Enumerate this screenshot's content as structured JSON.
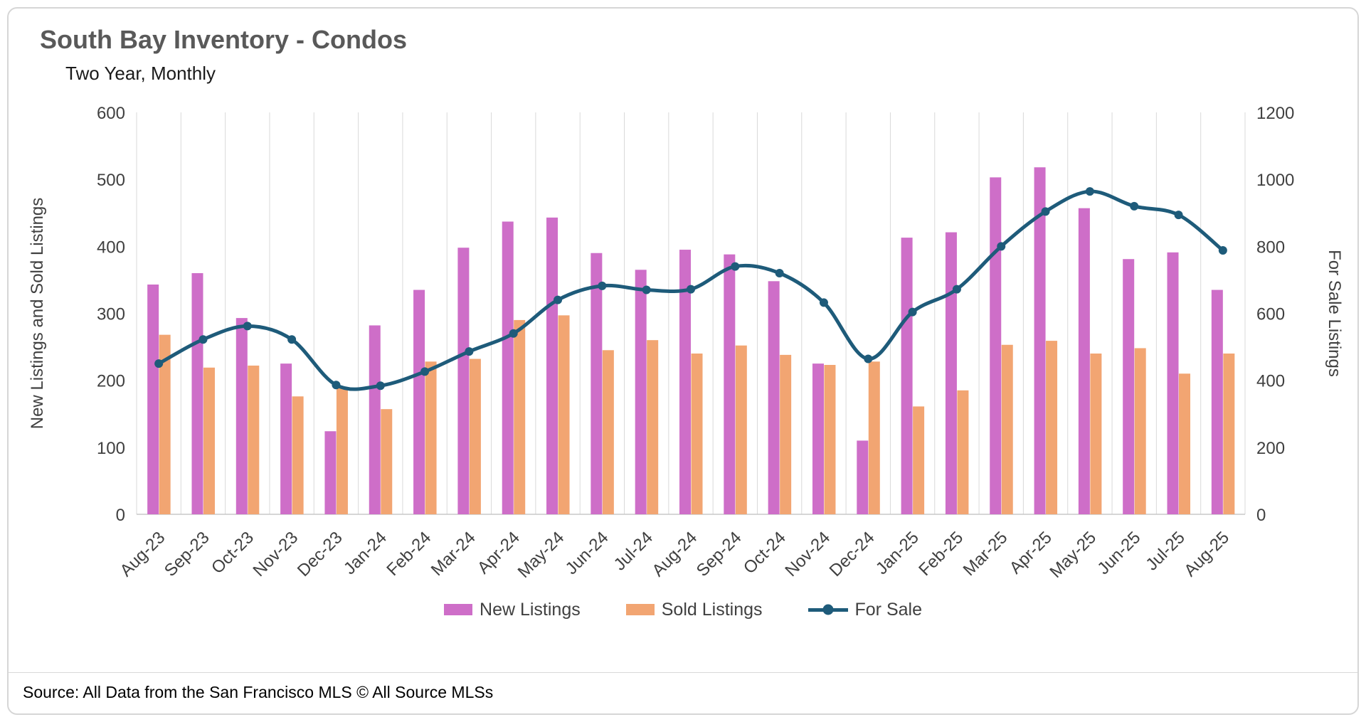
{
  "header": {
    "title": "South Bay Inventory - Condos",
    "subtitle": "Two Year, Monthly"
  },
  "footer": {
    "source": "Source: All Data from the San Francisco MLS © All Source MLSs"
  },
  "colors": {
    "new_listings": "#ce6ec8",
    "sold_listings": "#f2a572",
    "for_sale": "#1e5b7a",
    "gridline": "#d9d9d9",
    "axis_text": "#404040",
    "title_text": "#595959"
  },
  "chart_data": {
    "type": "bar+line",
    "title": "South Bay Inventory - Condos",
    "subtitle": "Two Year, Monthly",
    "grid": "vertical-only",
    "legend_position": "bottom",
    "categories": [
      "Aug-23",
      "Sep-23",
      "Oct-23",
      "Nov-23",
      "Dec-23",
      "Jan-24",
      "Feb-24",
      "Mar-24",
      "Apr-24",
      "May-24",
      "Jun-24",
      "Jul-24",
      "Aug-24",
      "Sep-24",
      "Oct-24",
      "Nov-24",
      "Dec-24",
      "Jan-25",
      "Feb-25",
      "Mar-25",
      "Apr-25",
      "May-25",
      "Jun-25",
      "Jul-25",
      "Aug-25"
    ],
    "series": [
      {
        "name": "New Listings",
        "type": "bar",
        "axis": "left",
        "color": "#ce6ec8",
        "values": [
          343,
          360,
          293,
          225,
          124,
          282,
          335,
          398,
          437,
          443,
          390,
          365,
          395,
          388,
          348,
          225,
          110,
          413,
          421,
          503,
          518,
          457,
          381,
          391,
          335
        ]
      },
      {
        "name": "Sold Listings",
        "type": "bar",
        "axis": "left",
        "color": "#f2a572",
        "values": [
          268,
          219,
          222,
          176,
          190,
          157,
          228,
          232,
          290,
          297,
          245,
          260,
          240,
          252,
          238,
          223,
          228,
          161,
          185,
          253,
          259,
          240,
          248,
          210,
          240
        ]
      },
      {
        "name": "For Sale",
        "type": "line",
        "axis": "right",
        "color": "#1e5b7a",
        "values": [
          450,
          522,
          562,
          522,
          386,
          384,
          426,
          486,
          540,
          640,
          682,
          670,
          672,
          740,
          720,
          632,
          464,
          604,
          672,
          800,
          904,
          964,
          920,
          894,
          788
        ]
      }
    ],
    "left_axis": {
      "label": "New Listings and Sold Listings",
      "min": 0,
      "max": 600,
      "step": 100
    },
    "right_axis": {
      "label": "For Sale Listings",
      "min": 0,
      "max": 1200,
      "step": 200
    }
  }
}
